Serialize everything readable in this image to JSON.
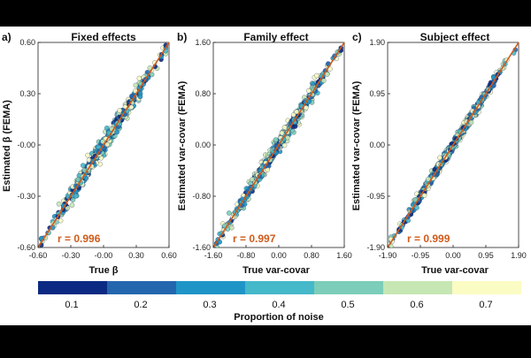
{
  "chart_data": [
    {
      "type": "scatter",
      "panel_label": "a)",
      "title": "Fixed effects",
      "xlabel": "True β",
      "ylabel": "Estimated β (FEMA)",
      "xlim": [
        -0.6,
        0.6
      ],
      "ylim": [
        -0.6,
        0.6
      ],
      "xticks": [
        "-0.60",
        "-0.30",
        "-0.00",
        "0.30",
        "0.60"
      ],
      "yticks": [
        "-0.60",
        "-0.30",
        "-0.00",
        "0.30",
        "0.60"
      ],
      "annotation": "r = 0.996",
      "r": 0.996,
      "spread": 0.095,
      "seed": 11,
      "n_points": 650
    },
    {
      "type": "scatter",
      "panel_label": "b)",
      "title": "Family effect",
      "xlabel": "True var-covar",
      "ylabel": "Estimated var-covar (FEMA)",
      "xlim": [
        -1.6,
        1.6
      ],
      "ylim": [
        -1.6,
        1.6
      ],
      "xticks": [
        "-1.60",
        "-0.80",
        "0.00",
        "0.80",
        "1.60"
      ],
      "yticks": [
        "-1.60",
        "-0.80",
        "0.00",
        "0.80",
        "1.60"
      ],
      "annotation": "r = 0.997",
      "r": 0.997,
      "spread": 0.085,
      "seed": 23,
      "n_points": 600
    },
    {
      "type": "scatter",
      "panel_label": "c)",
      "title": "Subject effect",
      "xlabel": "True var-covar",
      "ylabel": "Estimated var-covar (FEMA)",
      "xlim": [
        -1.9,
        1.9
      ],
      "ylim": [
        -1.9,
        1.9
      ],
      "xticks": [
        "-1.90",
        "-0.95",
        "0.00",
        "0.95",
        "1.90"
      ],
      "yticks": [
        "-1.90",
        "-0.95",
        "0.00",
        "0.95",
        "1.90"
      ],
      "annotation": "r = 0.999",
      "r": 0.999,
      "spread": 0.06,
      "seed": 37,
      "n_points": 600
    }
  ],
  "colorbar": {
    "label": "Proportion of noise",
    "ticks": [
      "0.1",
      "0.2",
      "0.3",
      "0.4",
      "0.5",
      "0.6",
      "0.7"
    ],
    "range": [
      0.05,
      0.75
    ],
    "colors": [
      "#0c2a83",
      "#2466ae",
      "#1f95c7",
      "#45b8ca",
      "#7ccdb9",
      "#c6e7b4",
      "#fbfbc4"
    ]
  },
  "fit_line_color": "#d05a1a"
}
